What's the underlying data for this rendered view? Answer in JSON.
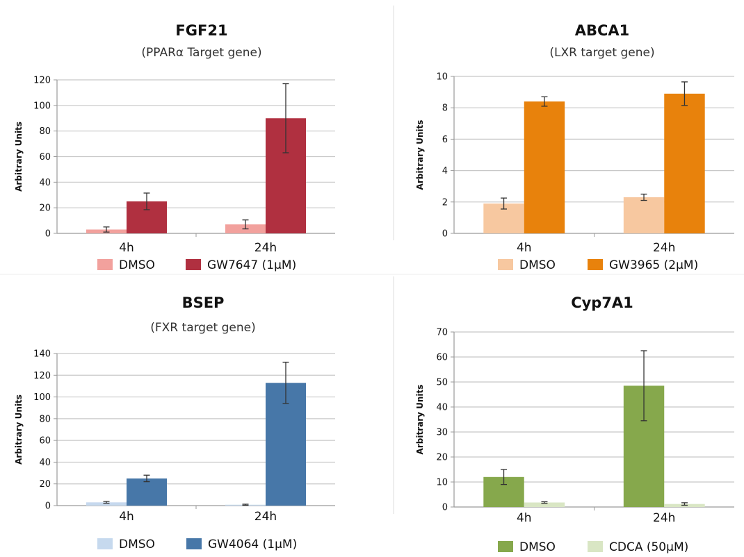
{
  "chart_data": [
    {
      "type": "bar",
      "title": "FGF21",
      "subtitle": "(PPARα Target gene)",
      "ylabel": "Arbitrary Units",
      "categories": [
        "4h",
        "24h"
      ],
      "ylim": [
        0,
        120
      ],
      "yticks": [
        0,
        20,
        40,
        60,
        80,
        100,
        120
      ],
      "grid": true,
      "legend": "bottom",
      "series": [
        {
          "name": "DMSO",
          "color": "#f2a19d",
          "values": [
            3,
            7
          ],
          "errors": [
            2,
            3.5
          ]
        },
        {
          "name": "GW7647 (1μM)",
          "color": "#b03040",
          "values": [
            25,
            90
          ],
          "errors": [
            6.5,
            27
          ]
        }
      ]
    },
    {
      "type": "bar",
      "title": "ABCA1",
      "subtitle": "(LXR target gene)",
      "ylabel": "Arbitrary Units",
      "categories": [
        "4h",
        "24h"
      ],
      "ylim": [
        0,
        10
      ],
      "yticks": [
        0,
        2,
        4,
        6,
        8,
        10
      ],
      "grid": true,
      "legend": "bottom",
      "series": [
        {
          "name": "DMSO",
          "color": "#f7c8a0",
          "values": [
            1.9,
            2.3
          ],
          "errors": [
            0.35,
            0.2
          ]
        },
        {
          "name": "GW3965 (2μM)",
          "color": "#e8820c",
          "values": [
            8.4,
            8.9
          ],
          "errors": [
            0.3,
            0.75
          ]
        }
      ]
    },
    {
      "type": "bar",
      "title": "BSEP",
      "subtitle": "(FXR target gene)",
      "ylabel": "Arbitrary Units",
      "categories": [
        "4h",
        "24h"
      ],
      "ylim": [
        0,
        140
      ],
      "yticks": [
        0,
        20,
        40,
        60,
        80,
        100,
        120,
        140
      ],
      "grid": true,
      "legend": "bottom",
      "series": [
        {
          "name": "DMSO",
          "color": "#c6d9ee",
          "values": [
            3,
            0.8
          ],
          "errors": [
            0.8,
            0.5
          ]
        },
        {
          "name": "GW4064 (1μM)",
          "color": "#4777a8",
          "values": [
            25,
            113
          ],
          "errors": [
            3,
            19
          ]
        }
      ]
    },
    {
      "type": "bar",
      "title": "Cyp7A1",
      "subtitle": "",
      "ylabel": "Arbitrary Units",
      "categories": [
        "4h",
        "24h"
      ],
      "ylim": [
        0,
        70
      ],
      "yticks": [
        0,
        10,
        20,
        30,
        40,
        50,
        60,
        70
      ],
      "grid": true,
      "legend": "bottom",
      "series": [
        {
          "name": "DMSO",
          "color": "#86a84c",
          "values": [
            12,
            48.5
          ],
          "errors": [
            3,
            14
          ]
        },
        {
          "name": "CDCA (50μM)",
          "color": "#d9e6c4",
          "values": [
            1.8,
            1.2
          ],
          "errors": [
            0.3,
            0.5
          ]
        }
      ]
    }
  ]
}
